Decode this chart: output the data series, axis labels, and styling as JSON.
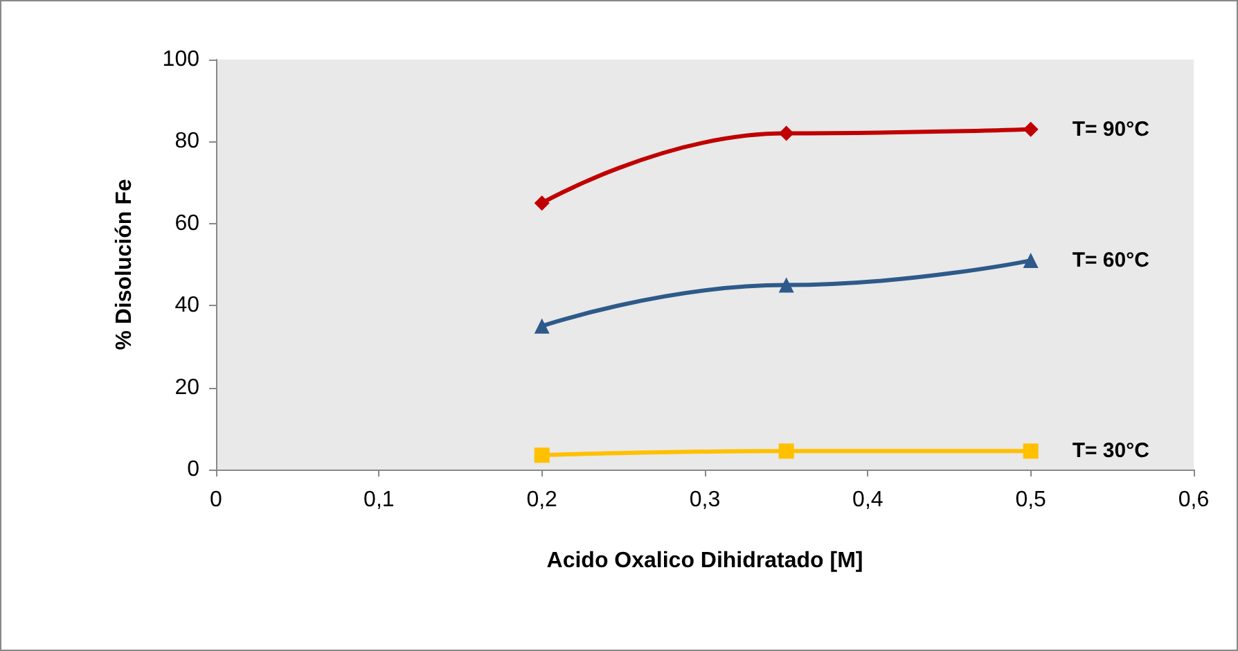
{
  "chart_data": {
    "type": "line",
    "xlabel": "Acido Oxalico Dihidratado [M]",
    "ylabel": "% Disolución Fe",
    "x": [
      0.2,
      0.35,
      0.5
    ],
    "series": [
      {
        "name": "T= 90°C",
        "color": "#c00000",
        "marker": "diamond",
        "values": [
          65,
          82,
          83
        ]
      },
      {
        "name": "T= 60°C",
        "color": "#2e5a8a",
        "marker": "triangle",
        "values": [
          35,
          45,
          51
        ]
      },
      {
        "name": "T= 30°C",
        "color": "#ffc000",
        "marker": "square",
        "values": [
          3.5,
          4.5,
          4.5
        ]
      }
    ],
    "xlim": [
      0,
      0.6
    ],
    "xticks": [
      {
        "value": 0,
        "label": "0"
      },
      {
        "value": 0.1,
        "label": "0,1"
      },
      {
        "value": 0.2,
        "label": "0,2"
      },
      {
        "value": 0.3,
        "label": "0,3"
      },
      {
        "value": 0.4,
        "label": "0,4"
      },
      {
        "value": 0.5,
        "label": "0,5"
      },
      {
        "value": 0.6,
        "label": "0,6"
      }
    ],
    "ylim": [
      0,
      100
    ],
    "yticks": [
      0,
      20,
      40,
      60,
      80,
      100
    ],
    "grid": false,
    "legend": false
  }
}
